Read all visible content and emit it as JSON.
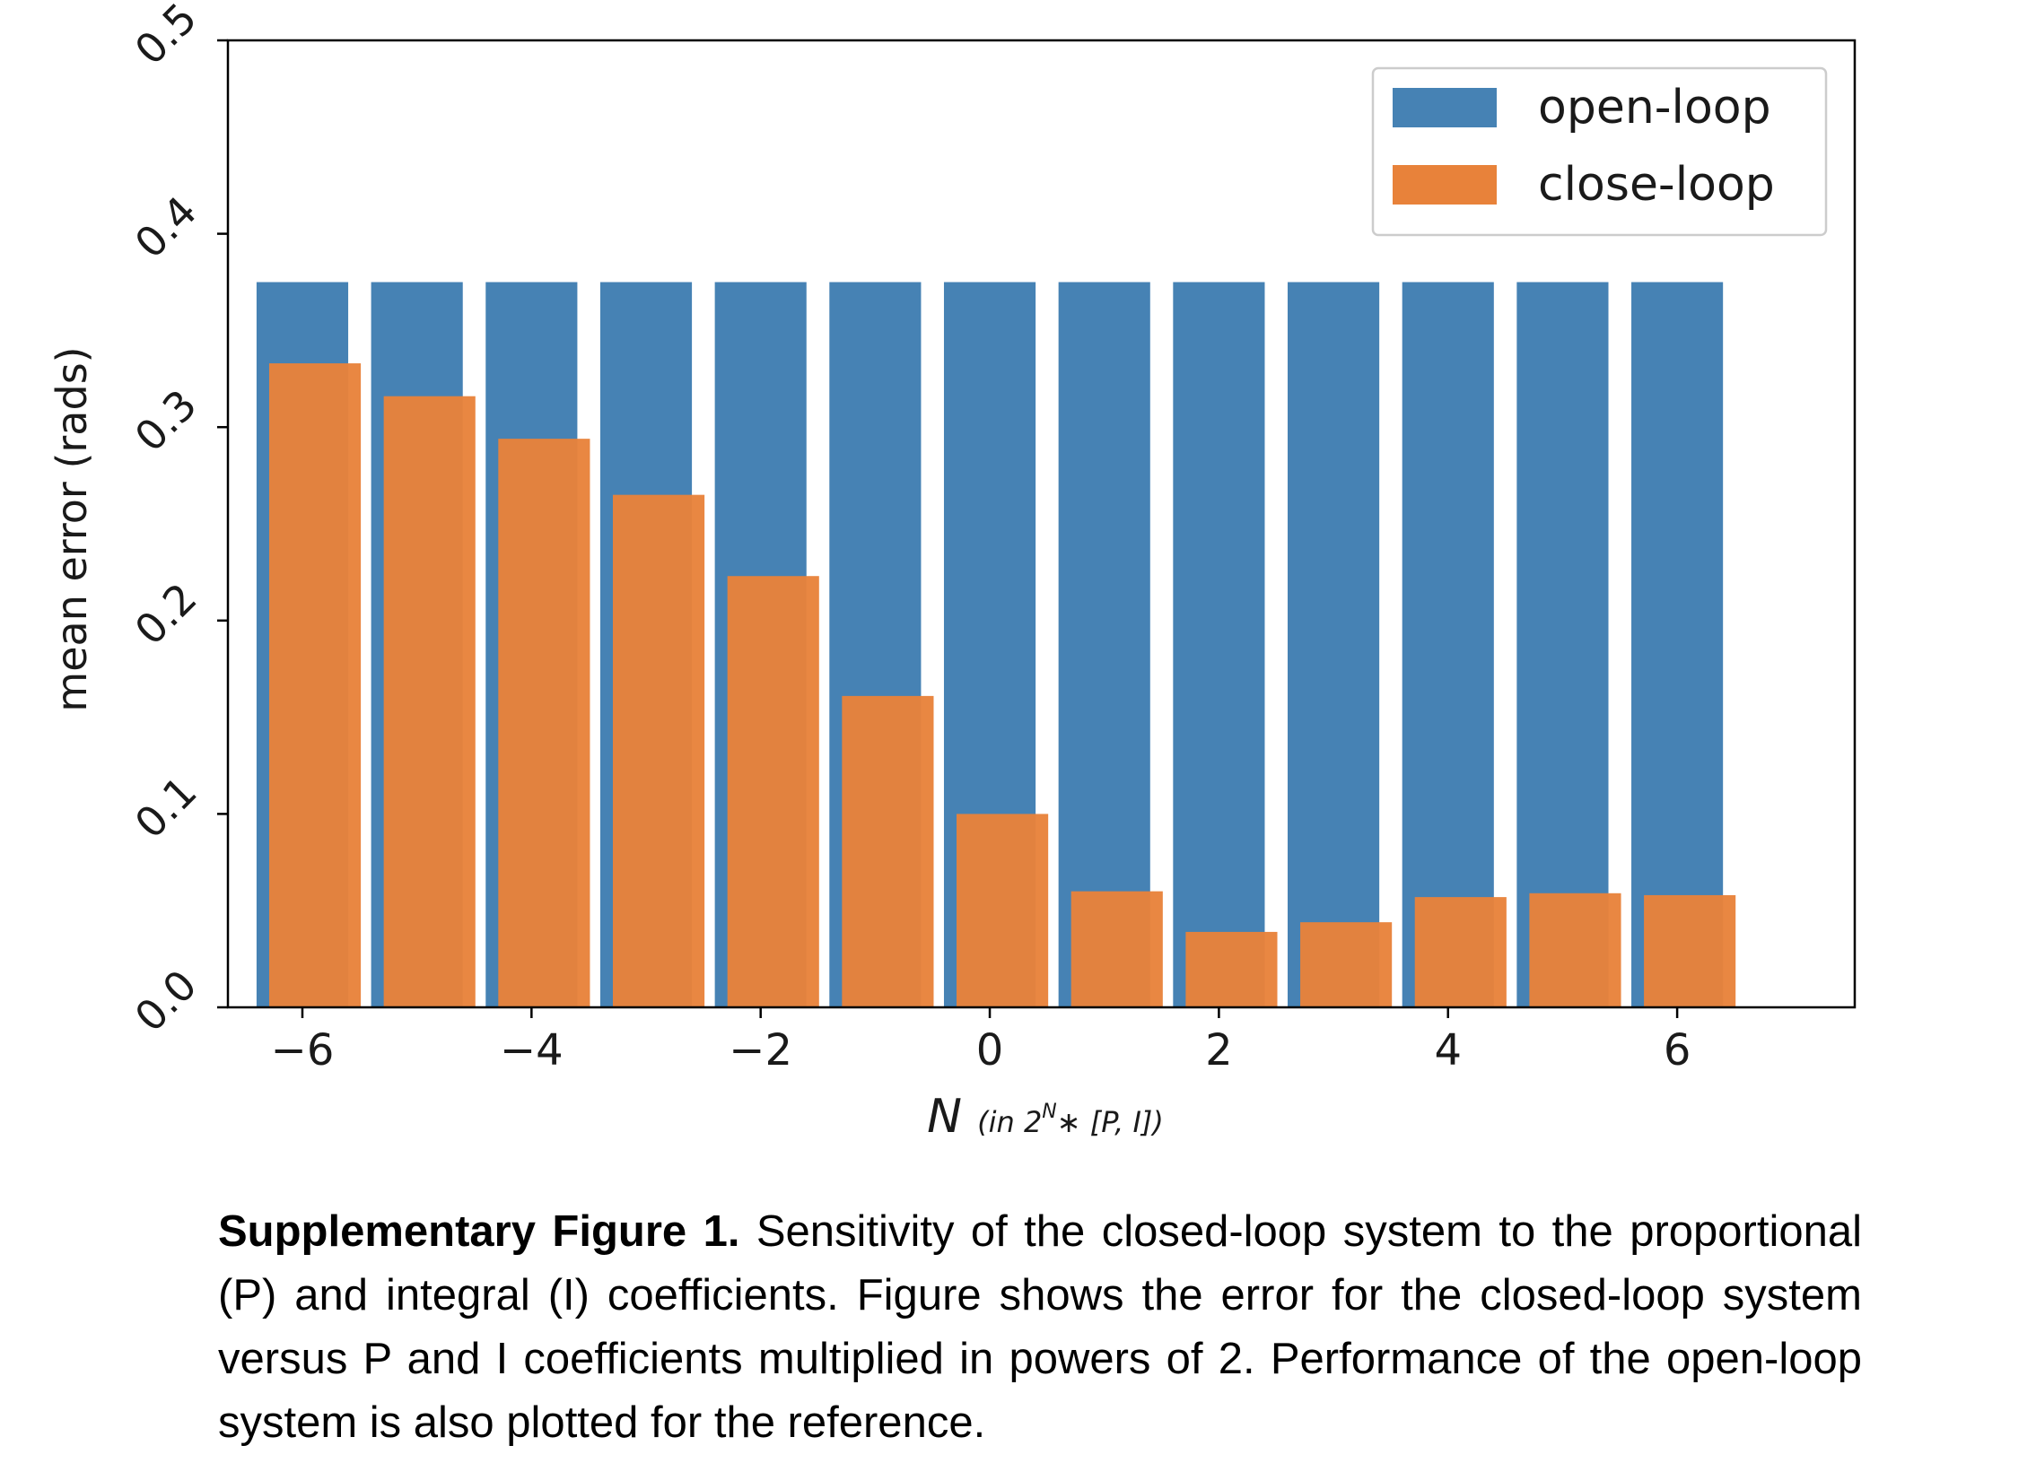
{
  "chart_data": {
    "type": "bar",
    "ylabel": "mean error (rads)",
    "xlabel": "N",
    "xlabel_suffix": "(in 2",
    "xlabel_sup": "N",
    "xlabel_tail": "∗ [P, I])",
    "x": [
      -6,
      -5,
      -4,
      -3,
      -2,
      -1,
      0,
      1,
      2,
      3,
      4,
      5,
      6
    ],
    "series": [
      {
        "name": "open-loop",
        "color": "#4682b4",
        "values": [
          0.375,
          0.375,
          0.375,
          0.375,
          0.375,
          0.375,
          0.375,
          0.375,
          0.375,
          0.375,
          0.375,
          0.375,
          0.375
        ]
      },
      {
        "name": "close-loop",
        "color": "#e8823a",
        "values": [
          0.333,
          0.316,
          0.294,
          0.265,
          0.223,
          0.161,
          0.1,
          0.06,
          0.039,
          0.044,
          0.057,
          0.059,
          0.058
        ]
      }
    ],
    "xticks": [
      -6,
      -4,
      -2,
      0,
      2,
      4,
      6
    ],
    "xtick_labels": [
      "−6",
      "−4",
      "−2",
      "0",
      "2",
      "4",
      "6"
    ],
    "yticks": [
      0.0,
      0.1,
      0.2,
      0.3,
      0.4,
      0.5
    ],
    "ytick_labels": [
      "0.0",
      "0.1",
      "0.2",
      "0.3",
      "0.4",
      "0.5"
    ],
    "ylim": [
      0,
      0.5
    ],
    "xlim": [
      -6.65,
      7.55
    ],
    "legend_position": "top-right",
    "grid": false
  },
  "caption": {
    "label": "Supplementary Figure 1.",
    "text": " Sensitivity of the closed-loop system to the proportional (P) and integral (I) coefficients. Figure shows the error for the closed-loop system versus P and I coefficients multiplied in powers of 2. Performance of the open-loop system is also plotted for the reference."
  }
}
